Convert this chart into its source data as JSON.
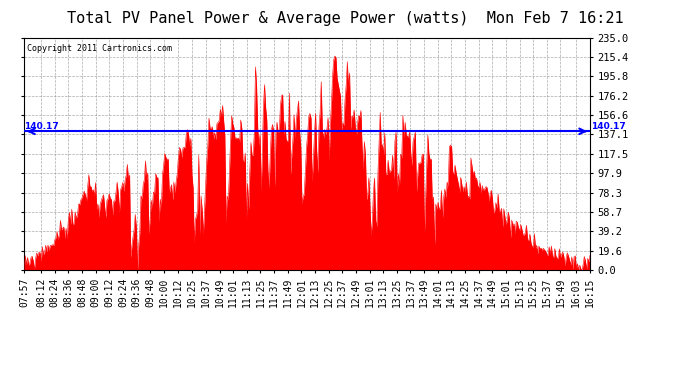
{
  "title": "Total PV Panel Power & Average Power (watts)  Mon Feb 7 16:21",
  "copyright": "Copyright 2011 Cartronics.com",
  "avg_value": 140.17,
  "avg_label": "140.17",
  "ymin": 0.0,
  "ymax": 235.0,
  "yticks": [
    0.0,
    19.6,
    39.2,
    58.7,
    78.3,
    97.9,
    117.5,
    137.1,
    156.6,
    176.2,
    195.8,
    215.4,
    235.0
  ],
  "fill_color": "#FF0000",
  "line_color": "#FF0000",
  "avg_line_color": "#0000FF",
  "bg_color": "#FFFFFF",
  "plot_bg_color": "#FFFFFF",
  "grid_color": "#888888",
  "title_fontsize": 11,
  "tick_fontsize": 7.5,
  "x_labels": [
    "07:57",
    "08:12",
    "08:24",
    "08:36",
    "08:48",
    "09:00",
    "09:12",
    "09:24",
    "09:36",
    "09:48",
    "10:00",
    "10:12",
    "10:25",
    "10:37",
    "10:49",
    "11:01",
    "11:13",
    "11:25",
    "11:37",
    "11:49",
    "12:01",
    "12:13",
    "12:25",
    "12:37",
    "12:49",
    "13:01",
    "13:13",
    "13:25",
    "13:37",
    "13:49",
    "14:01",
    "14:13",
    "14:25",
    "14:37",
    "14:49",
    "15:01",
    "15:13",
    "15:25",
    "15:37",
    "15:49",
    "16:03",
    "16:15"
  ]
}
